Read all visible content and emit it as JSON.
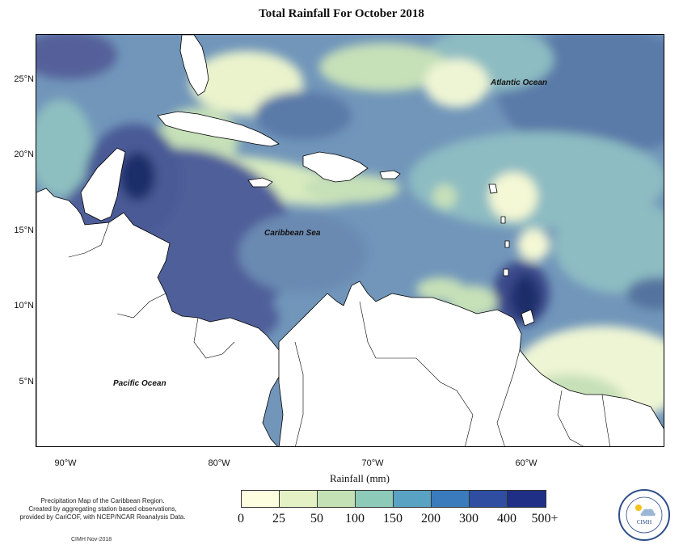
{
  "title": "Total Rainfall For October 2018",
  "map": {
    "labels": {
      "atlantic": "Atlantic Ocean",
      "caribbean": "Caribbean Sea",
      "pacific": "Pacific Ocean"
    },
    "lat_ticks": [
      "25°N",
      "20°N",
      "15°N",
      "10°N",
      "5°N"
    ],
    "lon_ticks": [
      "90°W",
      "80°W",
      "70°W",
      "60°W"
    ]
  },
  "legend": {
    "title": "Rainfall (mm)",
    "ticks": [
      "0",
      "25",
      "50",
      "100",
      "150",
      "200",
      "300",
      "400",
      "500+"
    ],
    "colors": [
      "#fdfde0",
      "#e4f1c4",
      "#c4e0b5",
      "#8ecab8",
      "#5aa2c3",
      "#3a7bbd",
      "#2f4ea2",
      "#202f86",
      "#0f1c56"
    ]
  },
  "description": {
    "line1": "Precipitation Map of the Caribbean Region.",
    "line2": "Created by aggregating station based observations,",
    "line3": "provided by CariCOF, with NCEP/NCAR Reanalysis Data."
  },
  "stamp": "CIMH Nov-2018",
  "logo": {
    "text": "CIMH"
  }
}
